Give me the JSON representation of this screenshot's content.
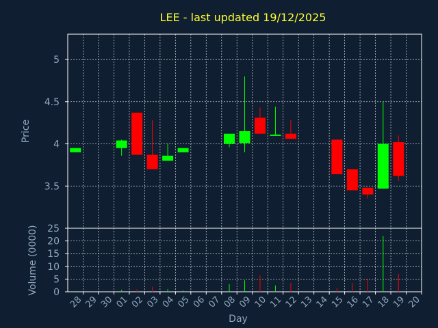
{
  "chart_data": {
    "type": "candlestick",
    "title": "LEE - last updated 19/12/2025",
    "price_panel": {
      "ylabel": "Price",
      "ylim": [
        3.0,
        5.3
      ],
      "yticks": [
        {
          "v": 3.5,
          "label": "3.5"
        },
        {
          "v": 4.0,
          "label": "4"
        },
        {
          "v": 4.5,
          "label": "4.5"
        },
        {
          "v": 5.0,
          "label": "5"
        }
      ]
    },
    "volume_panel": {
      "ylabel": "Volume (0000)",
      "ylim": [
        0,
        25
      ],
      "yticks": [
        {
          "v": 0,
          "label": "0"
        },
        {
          "v": 5,
          "label": "5"
        },
        {
          "v": 10,
          "label": "10"
        },
        {
          "v": 15,
          "label": "15"
        },
        {
          "v": 20,
          "label": "20"
        },
        {
          "v": 25,
          "label": "25"
        }
      ]
    },
    "xlabel": "Day",
    "x_ticks": [
      "28",
      "29",
      "30",
      "01",
      "02",
      "03",
      "04",
      "05",
      "06",
      "07",
      "08",
      "09",
      "10",
      "11",
      "12",
      "13",
      "14",
      "15",
      "16",
      "17",
      "18",
      "19",
      "20"
    ],
    "colors": {
      "up": "#00ff00",
      "down": "#ff0000"
    },
    "candles": [
      {
        "i": 0,
        "o": 3.9,
        "h": 3.95,
        "l": 3.9,
        "c": 3.95,
        "v": 0.3
      },
      {
        "i": 3,
        "o": 3.95,
        "h": 4.05,
        "l": 3.86,
        "c": 4.04,
        "v": 0.8
      },
      {
        "i": 4,
        "o": 4.37,
        "h": 4.37,
        "l": 3.87,
        "c": 3.87,
        "v": 1.0
      },
      {
        "i": 5,
        "o": 3.87,
        "h": 4.28,
        "l": 3.7,
        "c": 3.7,
        "v": 2.0
      },
      {
        "i": 6,
        "o": 3.8,
        "h": 4.0,
        "l": 3.8,
        "c": 3.86,
        "v": 1.0
      },
      {
        "i": 7,
        "o": 3.9,
        "h": 3.95,
        "l": 3.9,
        "c": 3.95,
        "v": 0.5
      },
      {
        "i": 10,
        "o": 4.0,
        "h": 4.12,
        "l": 3.96,
        "c": 4.12,
        "v": 3.0
      },
      {
        "i": 11,
        "o": 4.01,
        "h": 4.8,
        "l": 3.9,
        "c": 4.15,
        "v": 4.5
      },
      {
        "i": 12,
        "o": 4.31,
        "h": 4.43,
        "l": 4.12,
        "c": 4.12,
        "v": 6.5
      },
      {
        "i": 13,
        "o": 4.1,
        "h": 4.44,
        "l": 4.1,
        "c": 4.11,
        "v": 2.5
      },
      {
        "i": 14,
        "o": 4.12,
        "h": 4.28,
        "l": 4.06,
        "c": 4.06,
        "v": 3.5
      },
      {
        "i": 17,
        "o": 4.05,
        "h": 4.05,
        "l": 3.64,
        "c": 3.64,
        "v": 1.5
      },
      {
        "i": 18,
        "o": 3.7,
        "h": 3.7,
        "l": 3.45,
        "c": 3.45,
        "v": 3.5
      },
      {
        "i": 19,
        "o": 3.48,
        "h": 3.48,
        "l": 3.35,
        "c": 3.4,
        "v": 5.0
      },
      {
        "i": 20,
        "o": 3.47,
        "h": 4.5,
        "l": 3.47,
        "c": 4.0,
        "v": 22.0
      },
      {
        "i": 21,
        "o": 4.02,
        "h": 4.1,
        "l": 3.56,
        "c": 3.62,
        "v": 7.0
      }
    ]
  }
}
